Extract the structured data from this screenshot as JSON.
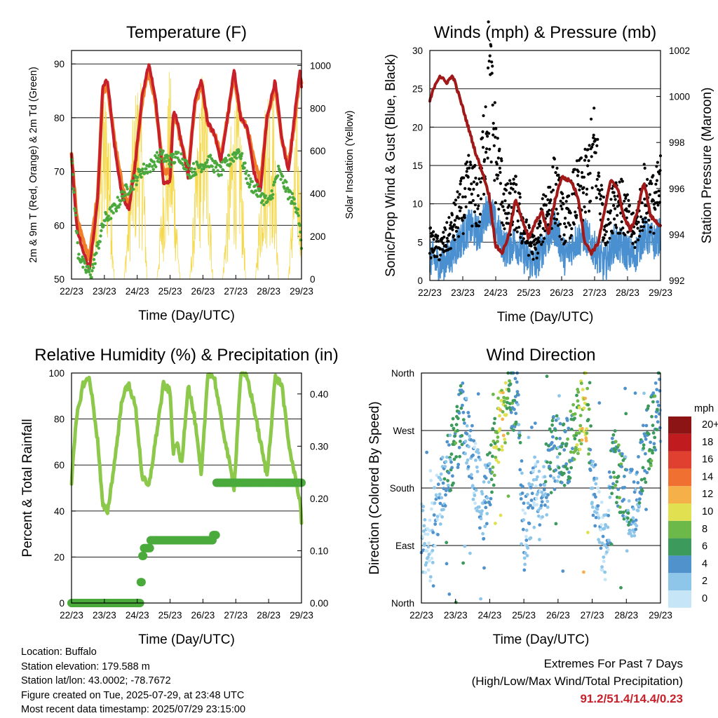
{
  "x_ticks": [
    "22/23",
    "23/23",
    "24/23",
    "25/23",
    "26/23",
    "27/23",
    "28/23",
    "29/23"
  ],
  "panels": {
    "temperature": {
      "title": "Temperature (F)",
      "xlabel": "Time (Day/UTC)",
      "ylabel_left": "2m & 9m T (Red, Orange) & 2m Td (Green)",
      "ylabel_right": "Solar Insolation (Yellow)",
      "yticks_left": [
        "50",
        "60",
        "70",
        "80",
        "90"
      ],
      "yticks_right": [
        "0",
        "200",
        "400",
        "600",
        "800",
        "1000"
      ]
    },
    "winds": {
      "title": "Winds (mph) & Pressure (mb)",
      "xlabel": "Time (Day/UTC)",
      "ylabel_left": "Sonic/Prop Wind & Gust (Blue, Black)",
      "ylabel_right": "Station Pressure (Maroon)",
      "yticks_left": [
        "0",
        "5",
        "10",
        "15",
        "20",
        "25",
        "30"
      ],
      "yticks_right": [
        "992",
        "994",
        "996",
        "998",
        "1000",
        "1002"
      ]
    },
    "humidity": {
      "title": "Relative Humidity (%) & Precipitation (in)",
      "xlabel": "Time (Day/UTC)",
      "ylabel_left": "Percent & Total Rainfall",
      "yticks_left": [
        "0",
        "20",
        "40",
        "60",
        "80",
        "100"
      ],
      "yticks_right": [
        "0.00",
        "0.10",
        "0.20",
        "0.30",
        "0.40"
      ]
    },
    "direction": {
      "title": "Wind Direction",
      "xlabel": "Time (Day/UTC)",
      "ylabel_left": "Direction (Colored By Speed)",
      "yticks_left": [
        "North",
        "East",
        "South",
        "West",
        "North"
      ],
      "legend_title": "mph",
      "legend_labels": [
        "0",
        "2",
        "4",
        "6",
        "8",
        "10",
        "12",
        "14",
        "16",
        "18",
        "20+"
      ],
      "legend_colors": [
        "#c6e6f7",
        "#8ec6ea",
        "#4f92cc",
        "#3c9a5c",
        "#6cb848",
        "#e0e050",
        "#f6b04a",
        "#ef7030",
        "#e04030",
        "#c01c20",
        "#8c1414"
      ]
    }
  },
  "info": {
    "location": "Location: Buffalo",
    "elevation": "Station elevation: 179.588 m",
    "latlon": "Station lat/lon: 43.0002; -78.7672",
    "created": "Figure created on Tue, 2025-07-29, at 23:48 UTC",
    "timestamp": "Most recent data timestamp: 2025/07/29 23:15:00"
  },
  "extremes": {
    "line1": "Extremes For Past 7 Days",
    "line2": "(High/Low/Max Wind/Total Precipitation)",
    "values": "91.2/51.4/14.4/0.23"
  },
  "colors": {
    "temp_2m": "#c8202a",
    "temp_9m": "#f07f2a",
    "dewpoint": "#4aa83c",
    "solar": "#f4d84a",
    "wind": "#4a90d0",
    "gust": "#000000",
    "pressure": "#a01818",
    "rh": "#8cc84a",
    "precip": "#4aaa3c"
  },
  "chart_data": [
    {
      "type": "line",
      "title": "Temperature (F)",
      "xlabel": "Time (Day/UTC)",
      "ylabel": "2m & 9m T (Red, Orange) & 2m Td (Green)",
      "y2label": "Solar Insolation (Yellow)",
      "ylim": [
        50,
        92.5
      ],
      "y2lim": [
        0,
        1070
      ],
      "x_unit": "days since 22/23 UTC",
      "series": [
        {
          "name": "2m T",
          "axis": "left",
          "x": [
            0,
            0.15,
            0.35,
            0.55,
            0.8,
            0.95,
            1.1,
            1.3,
            1.55,
            1.75,
            1.95,
            2.15,
            2.35,
            2.55,
            2.8,
            3.0,
            3.1,
            3.2,
            3.35,
            3.55,
            3.75,
            3.95,
            4.15,
            4.35,
            4.55,
            4.75,
            4.95,
            5.15,
            5.35,
            5.55,
            5.75,
            5.95,
            6.2,
            6.4,
            6.6,
            6.8,
            6.95,
            7.0
          ],
          "y": [
            73.5,
            60,
            55,
            52,
            65,
            86,
            87,
            75,
            65,
            63,
            72,
            84,
            90,
            84,
            68,
            68,
            81,
            80,
            75,
            69,
            83,
            87,
            79,
            77,
            72,
            80,
            89,
            80,
            78,
            70,
            66,
            80,
            87,
            76,
            70,
            81,
            89,
            86
          ]
        },
        {
          "name": "9m T",
          "axis": "left",
          "x": [
            0,
            0.15,
            0.35,
            0.55,
            0.8,
            0.95,
            1.1,
            1.3,
            1.55,
            1.75,
            1.95,
            2.15,
            2.35,
            2.55,
            2.8,
            3.0,
            3.1,
            3.2,
            3.35,
            3.55,
            3.75,
            3.95,
            4.15,
            4.35,
            4.55,
            4.75,
            4.95,
            5.15,
            5.35,
            5.55,
            5.75,
            5.95,
            6.2,
            6.4,
            6.6,
            6.8,
            6.95,
            7.0
          ],
          "y": [
            73,
            62,
            57,
            54,
            66,
            85,
            86,
            76,
            67,
            64,
            72,
            83,
            89,
            83,
            70,
            70,
            80,
            79,
            75,
            70,
            82,
            86,
            79,
            77,
            73,
            80,
            88,
            80,
            78,
            72,
            68,
            80,
            86,
            76,
            71,
            80,
            88,
            86
          ]
        },
        {
          "name": "2m Td",
          "axis": "left",
          "x": [
            0,
            0.2,
            0.4,
            0.6,
            0.8,
            1.0,
            1.3,
            1.6,
            1.9,
            2.1,
            2.4,
            2.7,
            3.0,
            3.3,
            3.6,
            3.9,
            4.2,
            4.5,
            4.8,
            5.1,
            5.4,
            5.7,
            6.0,
            6.3,
            6.6,
            6.9,
            7.0
          ],
          "y": [
            72,
            55,
            52,
            51,
            56,
            61,
            63,
            66,
            68,
            70,
            71,
            73,
            72,
            73,
            70,
            71,
            72,
            70,
            72,
            74,
            68,
            66,
            64,
            70,
            66,
            63,
            55
          ]
        },
        {
          "name": "Solar Insolation",
          "axis": "right",
          "x": [
            0,
            0.6,
            0.85,
            1.0,
            1.15,
            1.3,
            1.6,
            1.85,
            2.0,
            2.15,
            2.3,
            2.6,
            2.85,
            3.0,
            3.15,
            3.3,
            3.6,
            3.85,
            4.0,
            4.15,
            4.3,
            4.6,
            4.85,
            5.0,
            5.15,
            5.3,
            5.6,
            5.85,
            6.0,
            6.15,
            6.3,
            6.6,
            6.85,
            7.0
          ],
          "y": [
            0,
            0,
            700,
            900,
            800,
            0,
            0,
            700,
            950,
            850,
            0,
            0,
            650,
            980,
            500,
            0,
            0,
            700,
            1000,
            800,
            0,
            0,
            700,
            900,
            750,
            0,
            0,
            750,
            980,
            850,
            0,
            0,
            800,
            400
          ]
        }
      ]
    },
    {
      "type": "line",
      "title": "Winds (mph) & Pressure (mb)",
      "xlabel": "Time (Day/UTC)",
      "ylabel": "Sonic/Prop Wind & Gust (Blue, Black)",
      "y2label": "Station Pressure (Maroon)",
      "ylim": [
        0,
        30
      ],
      "y2lim": [
        992,
        1002
      ],
      "x_unit": "days since 22/23 UTC",
      "series": [
        {
          "name": "Sonic/Prop Wind",
          "axis": "left",
          "x": [
            0,
            0.3,
            0.6,
            0.9,
            1.2,
            1.5,
            1.8,
            2.0,
            2.3,
            2.6,
            2.9,
            3.2,
            3.5,
            3.8,
            4.1,
            4.4,
            4.7,
            5.0,
            5.3,
            5.6,
            5.9,
            6.2,
            6.5,
            6.8,
            7.0
          ],
          "y": [
            3,
            2,
            3,
            5,
            7,
            6,
            10,
            7,
            4,
            5,
            3,
            2,
            5,
            7,
            3,
            5,
            6,
            4,
            2,
            5,
            4,
            3,
            6,
            5,
            6
          ]
        },
        {
          "name": "Gust",
          "axis": "left",
          "x": [
            0,
            0.3,
            0.6,
            0.9,
            1.2,
            1.5,
            1.8,
            2.0,
            2.3,
            2.6,
            2.9,
            3.2,
            3.5,
            3.8,
            4.1,
            4.4,
            4.7,
            5.0,
            5.3,
            5.6,
            5.9,
            6.2,
            6.5,
            6.8,
            7.0
          ],
          "y": [
            5,
            4,
            6,
            9,
            12,
            10,
            26,
            16,
            9,
            10,
            6,
            4,
            9,
            12,
            7,
            11,
            12,
            17,
            7,
            11,
            9,
            6,
            11,
            10,
            12
          ]
        },
        {
          "name": "Station Pressure",
          "axis": "right",
          "x": [
            0,
            0.15,
            0.3,
            0.5,
            0.7,
            0.85,
            1.0,
            1.2,
            1.4,
            1.6,
            1.8,
            2.0,
            2.2,
            2.4,
            2.6,
            2.8,
            3.0,
            3.2,
            3.4,
            3.6,
            3.8,
            4.0,
            4.3,
            4.5,
            4.7,
            4.9,
            5.1,
            5.3,
            5.5,
            5.7,
            5.9,
            6.1,
            6.3,
            6.5,
            6.7,
            6.9,
            7.0
          ],
          "y": [
            999.8,
            1000.5,
            1000.9,
            1000.6,
            1000.9,
            1000.2,
            999.5,
            998.5,
            997.5,
            996.7,
            995.7,
            993.5,
            993.2,
            994,
            995.5,
            994.7,
            993.8,
            994.5,
            995,
            994,
            995.5,
            996.5,
            996.3,
            995.6,
            993.7,
            993.2,
            993.6,
            995,
            996.4,
            996,
            994.7,
            994.2,
            995,
            996.3,
            994.8,
            994.5,
            994.4
          ]
        }
      ]
    },
    {
      "type": "line",
      "title": "Relative Humidity (%) & Precipitation (in)",
      "xlabel": "Time (Day/UTC)",
      "ylabel": "Percent & Total Rainfall",
      "ylim": [
        0,
        100
      ],
      "y2lim": [
        0,
        0.44
      ],
      "x_unit": "days since 22/23 UTC",
      "series": [
        {
          "name": "Relative Humidity",
          "axis": "left",
          "x": [
            0,
            0.15,
            0.35,
            0.55,
            0.8,
            0.95,
            1.1,
            1.3,
            1.55,
            1.75,
            1.95,
            2.15,
            2.35,
            2.55,
            2.8,
            3.0,
            3.1,
            3.2,
            3.35,
            3.55,
            3.75,
            3.95,
            4.15,
            4.35,
            4.55,
            4.75,
            4.95,
            5.15,
            5.35,
            5.55,
            5.75,
            5.95,
            6.2,
            6.4,
            6.6,
            6.8,
            6.95,
            7.0
          ],
          "y": [
            53,
            80,
            95,
            98,
            70,
            42,
            40,
            60,
            90,
            95,
            85,
            55,
            50,
            70,
            95,
            92,
            65,
            70,
            60,
            95,
            80,
            55,
            100,
            98,
            80,
            65,
            50,
            100,
            98,
            85,
            70,
            55,
            98,
            95,
            70,
            55,
            45,
            36
          ]
        },
        {
          "name": "Total Precipitation",
          "axis": "right",
          "x": [
            0,
            1.0,
            2.0,
            2.1,
            2.15,
            2.2,
            2.4,
            3.0,
            3.8,
            4.3,
            4.4,
            5.0,
            6.0,
            7.0
          ],
          "y": [
            0,
            0,
            0,
            0.04,
            0.09,
            0.105,
            0.12,
            0.12,
            0.12,
            0.13,
            0.23,
            0.23,
            0.23,
            0.23
          ]
        }
      ]
    },
    {
      "type": "scatter",
      "title": "Wind Direction",
      "xlabel": "Time (Day/UTC)",
      "ylabel": "Direction (Colored By Speed)",
      "ylim": [
        0,
        360
      ],
      "yticklabels": [
        "North",
        "East",
        "South",
        "West",
        "North"
      ],
      "x_unit": "days since 22/23 UTC",
      "colorbar": {
        "label": "mph",
        "ticks": [
          "0",
          "2",
          "4",
          "6",
          "8",
          "10",
          "12",
          "14",
          "16",
          "18",
          "20+"
        ]
      },
      "series": [
        {
          "name": "Wind Direction",
          "x": [
            0.05,
            0.2,
            0.4,
            0.6,
            0.8,
            1.0,
            1.2,
            1.4,
            1.6,
            1.8,
            2.0,
            2.2,
            2.4,
            2.6,
            2.8,
            3.0,
            3.2,
            3.4,
            3.6,
            3.8,
            4.0,
            4.2,
            4.4,
            4.6,
            4.8,
            5.0,
            5.2,
            5.4,
            5.6,
            5.8,
            6.0,
            6.2,
            6.4,
            6.6,
            6.8,
            7.0
          ],
          "y": [
            100,
            60,
            140,
            180,
            220,
            250,
            300,
            240,
            200,
            150,
            200,
            260,
            300,
            320,
            330,
            100,
            150,
            190,
            160,
            250,
            240,
            230,
            250,
            280,
            320,
            200,
            120,
            80,
            220,
            190,
            180,
            150,
            200,
            250,
            280,
            330
          ],
          "speed": [
            2,
            1,
            2,
            3,
            4,
            6,
            5,
            3,
            2,
            3,
            4,
            9,
            10,
            6,
            5,
            2,
            3,
            2,
            3,
            5,
            4,
            5,
            6,
            8,
            11,
            3,
            2,
            1,
            5,
            6,
            4,
            3,
            4,
            5,
            6,
            4
          ]
        }
      ]
    }
  ]
}
